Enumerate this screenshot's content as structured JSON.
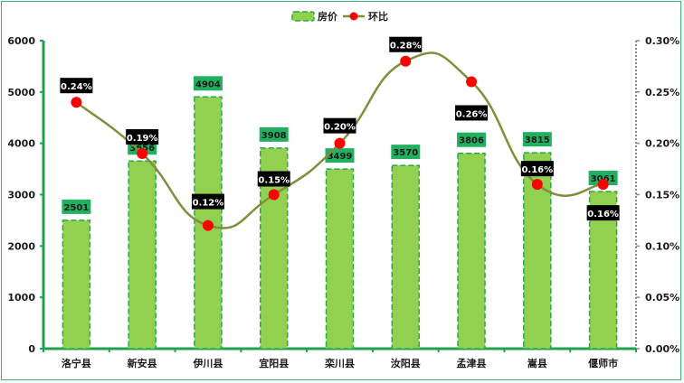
{
  "chart_data": {
    "type": "bar+line",
    "title": "",
    "legend": [
      {
        "name": "房价",
        "type": "bar",
        "color": "#92d050"
      },
      {
        "name": "环比",
        "type": "line",
        "color": "#7f8f3c",
        "marker_color": "#ff0000"
      }
    ],
    "legend_position": "top",
    "categories": [
      "洛宁县",
      "新安县",
      "伊川县",
      "宜阳县",
      "栾川县",
      "汝阳县",
      "孟津县",
      "嵩县",
      "偃师市"
    ],
    "series": [
      {
        "name": "房价",
        "axis": "left",
        "values": [
          2501,
          3656,
          4904,
          3908,
          3499,
          3570,
          3806,
          3815,
          3061
        ],
        "labels": [
          "2501",
          "3656",
          "4904",
          "3908",
          "3499",
          "3570",
          "3806",
          "3815",
          "3061"
        ]
      },
      {
        "name": "环比",
        "axis": "right",
        "values": [
          0.24,
          0.19,
          0.12,
          0.15,
          0.2,
          0.28,
          0.26,
          0.16,
          0.16
        ],
        "labels": [
          "0.24%",
          "0.19%",
          "0.12%",
          "0.15%",
          "0.20%",
          "0.28%",
          "0.26%",
          "0.16%",
          "0.16%"
        ]
      }
    ],
    "left_axis": {
      "ylim": [
        0,
        6000
      ],
      "ticks": [
        "0",
        "1000",
        "2000",
        "3000",
        "4000",
        "5000",
        "6000"
      ]
    },
    "right_axis": {
      "ylim": [
        0,
        0.3
      ],
      "ticks": [
        "0.00%",
        "0.05%",
        "0.10%",
        "0.15%",
        "0.20%",
        "0.25%",
        "0.30%"
      ]
    },
    "grid": false,
    "xlabel": "",
    "ylabel": ""
  },
  "colors": {
    "bar_fill": "#92d050",
    "bar_border": "#2aa84a",
    "axis_left": "#22a050",
    "axis_right": "#8c8c8c",
    "line": "#7f8f3c",
    "marker": "#ff0000",
    "bar_label_bg": "#22b060",
    "pct_label_bg": "#000000",
    "frame": "#3cb371"
  }
}
